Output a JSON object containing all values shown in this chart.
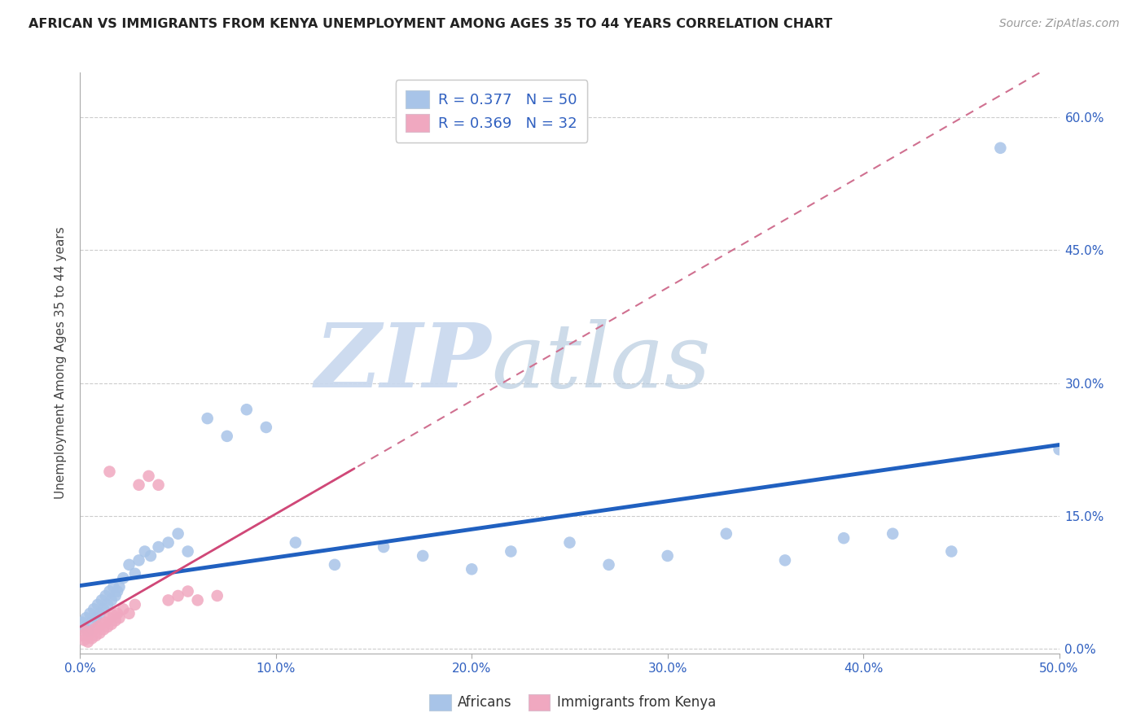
{
  "title": "AFRICAN VS IMMIGRANTS FROM KENYA UNEMPLOYMENT AMONG AGES 35 TO 44 YEARS CORRELATION CHART",
  "source": "Source: ZipAtlas.com",
  "ylabel": "Unemployment Among Ages 35 to 44 years",
  "xlim": [
    0.0,
    0.5
  ],
  "ylim": [
    -0.005,
    0.65
  ],
  "xticks": [
    0.0,
    0.1,
    0.2,
    0.3,
    0.4,
    0.5
  ],
  "yticks": [
    0.0,
    0.15,
    0.3,
    0.45,
    0.6
  ],
  "african_R": 0.377,
  "african_N": 50,
  "kenya_R": 0.369,
  "kenya_N": 32,
  "african_color": "#a8c4e8",
  "kenya_color": "#f0a8c0",
  "african_line_color": "#2060c0",
  "kenya_line_color": "#d04878",
  "kenya_dash_color": "#d07090",
  "text_blue": "#3060c0",
  "grid_color": "#cccccc",
  "axis_label_color": "#444444",
  "watermark_zip_color": "#c8d8ee",
  "watermark_atlas_color": "#b8cce0",
  "african_x": [
    0.001,
    0.002,
    0.003,
    0.004,
    0.005,
    0.006,
    0.007,
    0.008,
    0.009,
    0.01,
    0.011,
    0.012,
    0.013,
    0.014,
    0.015,
    0.016,
    0.017,
    0.018,
    0.019,
    0.02,
    0.022,
    0.025,
    0.028,
    0.03,
    0.033,
    0.036,
    0.04,
    0.045,
    0.05,
    0.055,
    0.065,
    0.075,
    0.085,
    0.095,
    0.11,
    0.13,
    0.155,
    0.175,
    0.2,
    0.22,
    0.25,
    0.27,
    0.3,
    0.33,
    0.36,
    0.39,
    0.415,
    0.445,
    0.47,
    0.5
  ],
  "african_y": [
    0.03,
    0.025,
    0.035,
    0.02,
    0.04,
    0.03,
    0.045,
    0.035,
    0.05,
    0.04,
    0.055,
    0.045,
    0.06,
    0.05,
    0.065,
    0.055,
    0.07,
    0.06,
    0.065,
    0.07,
    0.08,
    0.095,
    0.085,
    0.1,
    0.11,
    0.105,
    0.115,
    0.12,
    0.13,
    0.11,
    0.26,
    0.24,
    0.27,
    0.25,
    0.12,
    0.095,
    0.115,
    0.105,
    0.09,
    0.11,
    0.12,
    0.095,
    0.105,
    0.13,
    0.1,
    0.125,
    0.13,
    0.11,
    0.565,
    0.225
  ],
  "kenya_x": [
    0.001,
    0.002,
    0.003,
    0.004,
    0.005,
    0.006,
    0.007,
    0.008,
    0.009,
    0.01,
    0.011,
    0.012,
    0.013,
    0.014,
    0.015,
    0.016,
    0.017,
    0.018,
    0.019,
    0.02,
    0.022,
    0.025,
    0.028,
    0.03,
    0.035,
    0.04,
    0.045,
    0.05,
    0.055,
    0.06,
    0.07,
    0.015
  ],
  "kenya_y": [
    0.015,
    0.01,
    0.02,
    0.008,
    0.018,
    0.012,
    0.022,
    0.015,
    0.025,
    0.018,
    0.028,
    0.022,
    0.03,
    0.025,
    0.035,
    0.028,
    0.038,
    0.032,
    0.04,
    0.035,
    0.045,
    0.04,
    0.05,
    0.185,
    0.195,
    0.185,
    0.055,
    0.06,
    0.065,
    0.055,
    0.06,
    0.2
  ]
}
